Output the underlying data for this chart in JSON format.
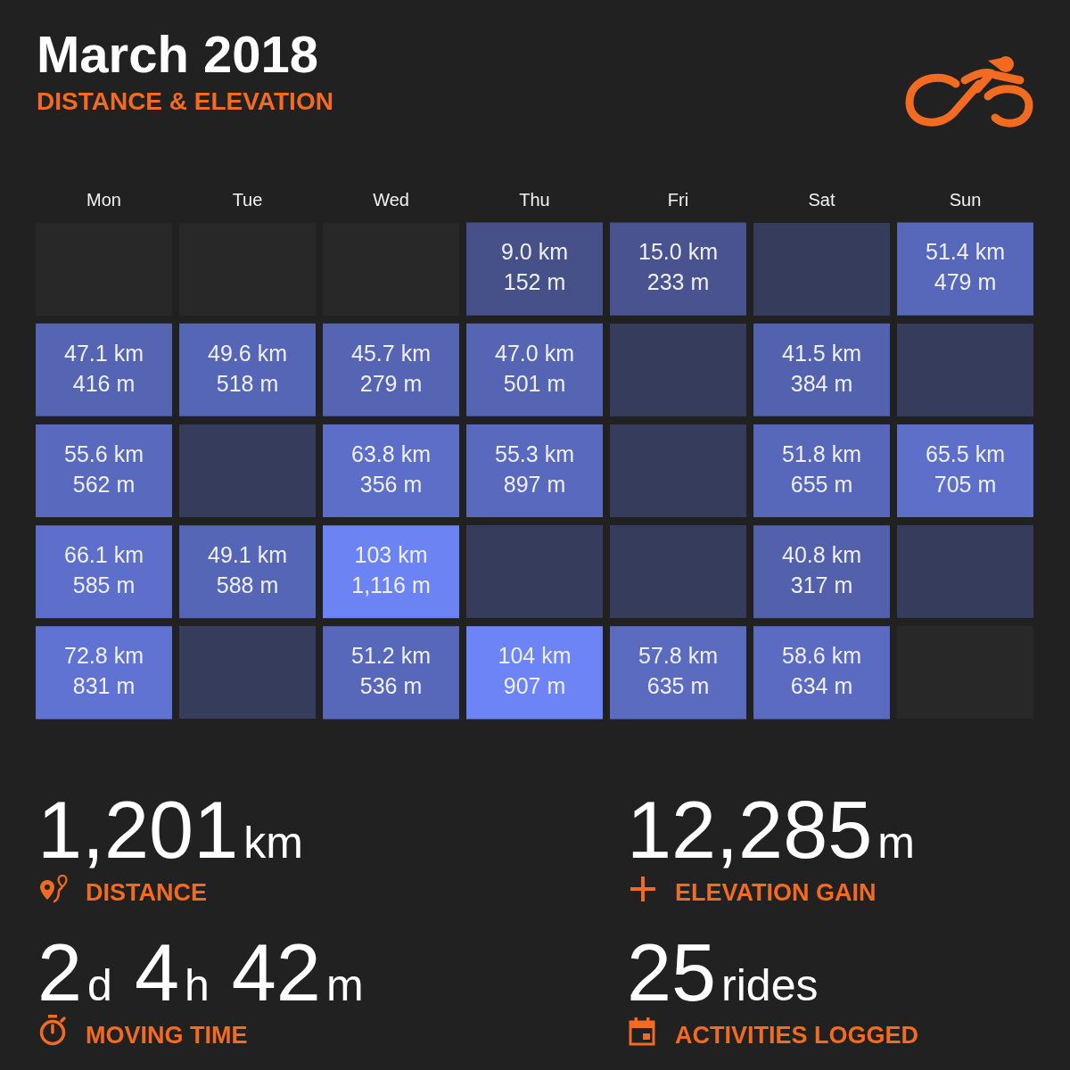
{
  "chart_data": [
    {
      "type": "heatmap",
      "title": "March 2018",
      "subtitle": "DISTANCE & ELEVATION",
      "categories": [
        "Mon",
        "Tue",
        "Wed",
        "Thu",
        "Fri",
        "Sat",
        "Sun"
      ],
      "y_categories": [
        null,
        null,
        null,
        null,
        null
      ],
      "cells": [
        [
          null,
          null,
          null,
          9.0,
          15.0,
          null,
          51.4
        ],
        [
          47.1,
          49.6,
          45.7,
          47.0,
          null,
          41.5,
          null
        ],
        [
          55.6,
          null,
          63.8,
          55.3,
          null,
          51.8,
          65.5
        ],
        [
          66.1,
          49.1,
          103,
          null,
          null,
          40.8,
          null
        ],
        [
          72.8,
          null,
          51.2,
          104,
          57.8,
          58.6,
          null
        ]
      ],
      "cell_labels": [
        [
          null,
          null,
          null,
          "9.0 km",
          "15.0 km",
          null,
          "51.4 km"
        ],
        [
          "47.1 km",
          "49.6 km",
          "45.7 km",
          "47.0 km",
          null,
          "41.5 km",
          null
        ],
        [
          "55.6 km",
          null,
          "63.8 km",
          "55.3 km",
          null,
          "51.8 km",
          "65.5 km"
        ],
        [
          "66.1 km",
          "49.1 km",
          "103 km",
          null,
          null,
          "40.8 km",
          null
        ],
        [
          "72.8 km",
          null,
          "51.2 km",
          "104 km",
          "57.8 km",
          "58.6 km",
          null
        ]
      ],
      "data_labels": true,
      "annotations": [
        "152 m",
        "233 m",
        "479 m",
        "416 m",
        "518 m",
        "279 m",
        "501 m",
        "384 m",
        "562 m",
        "356 m",
        "897 m",
        "655 m",
        "705 m",
        "585 m",
        "588 m",
        "1,116 m",
        "317 m",
        "831 m",
        "536 m",
        "907 m",
        "635 m",
        "634 m"
      ]
    },
    {
      "type": "other",
      "annotations": [
        "1,201km",
        "DISTANCE",
        "12,285m",
        "ELEVATION GAIN",
        "2d 4h 42m",
        "MOVING TIME",
        "25rides",
        "ACTIVITIES LOGGED"
      ]
    }
  ]
}
